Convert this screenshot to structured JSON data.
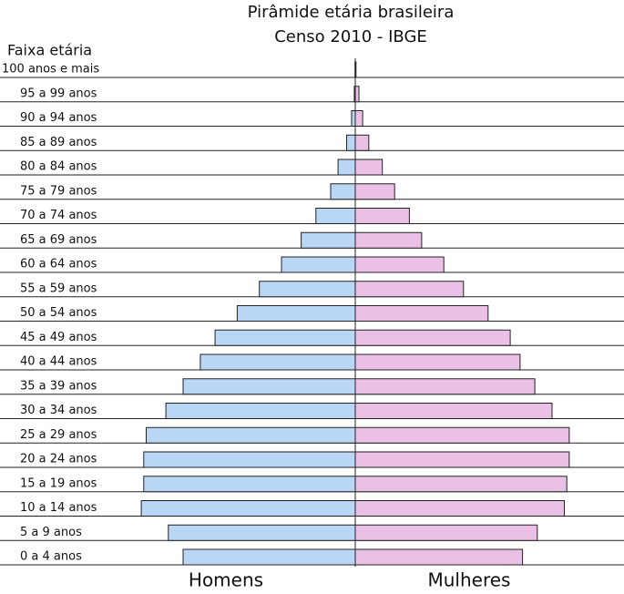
{
  "chart_data": {
    "type": "pyramid",
    "title": "Pirâmide etária brasileira",
    "subtitle": "Censo 2010 - IBGE",
    "y_label": "Faixa etária",
    "categories": [
      "0 a 4 anos",
      "5 a 9 anos",
      "10 a 14 anos",
      "15 a 19 anos",
      "20 a 24 anos",
      "25 a 29 anos",
      "30 a 34 anos",
      "35 a 39 anos",
      "40 a 44 anos",
      "45 a 49 anos",
      "50 a 54 anos",
      "55 a 59 anos",
      "60 a 64 anos",
      "65 a 69 anos",
      "70 a 74 anos",
      "75 a 79 anos",
      "80 a 84 anos",
      "85 a 89 anos",
      "90 a 94 anos",
      "95 a 99 anos",
      "100 anos e mais"
    ],
    "series": [
      {
        "name": "Homens",
        "color": "#b9d7f5",
        "side": "left",
        "values": [
          7.0,
          7.6,
          8.7,
          8.6,
          8.6,
          8.5,
          7.7,
          7.0,
          6.3,
          5.7,
          4.8,
          3.9,
          3.0,
          2.2,
          1.6,
          1.0,
          0.7,
          0.35,
          0.15,
          0.04,
          0.01
        ]
      },
      {
        "name": "Mulheres",
        "color": "#ebc0e6",
        "side": "right",
        "values": [
          6.8,
          7.4,
          8.5,
          8.6,
          8.7,
          8.7,
          8.0,
          7.3,
          6.7,
          6.3,
          5.4,
          4.4,
          3.6,
          2.7,
          2.2,
          1.6,
          1.1,
          0.55,
          0.3,
          0.15,
          0.03
        ]
      }
    ]
  }
}
